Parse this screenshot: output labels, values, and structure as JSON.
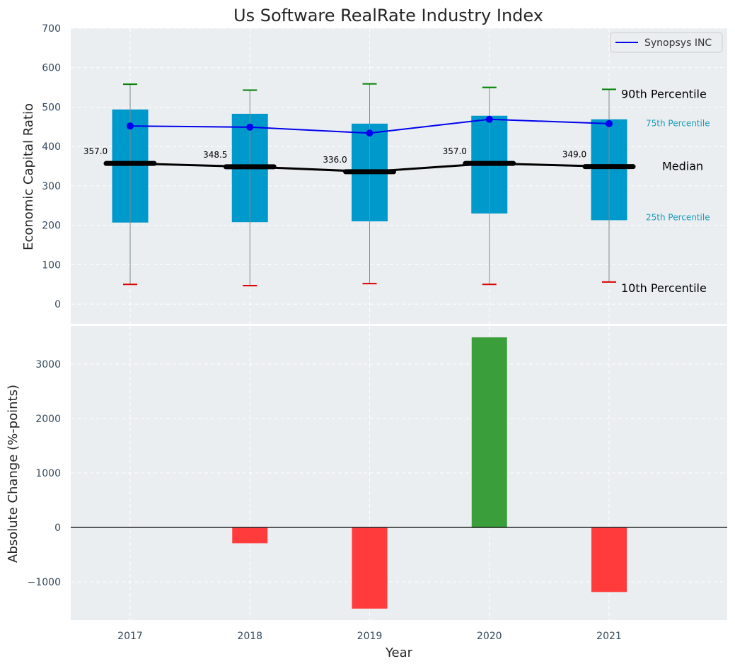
{
  "chart_data": [
    {
      "type": "box",
      "title": "Us Software RealRate Industry Index",
      "ylabel": "Economic Capital Ratio",
      "ylim": [
        -50,
        700
      ],
      "yticks": [
        0,
        100,
        200,
        300,
        400,
        500,
        600,
        700
      ],
      "categories": [
        "2017",
        "2018",
        "2019",
        "2020",
        "2021"
      ],
      "p10": [
        50,
        47,
        52,
        50,
        56
      ],
      "p25": [
        207,
        208,
        210,
        230,
        213
      ],
      "median": [
        357.0,
        348.5,
        336.0,
        357.0,
        349.0
      ],
      "median_labels": [
        "357.0",
        "348.5",
        "336.0",
        "357.0",
        "349.0"
      ],
      "p75": [
        494,
        483,
        458,
        478,
        469
      ],
      "p90": [
        558,
        543,
        559,
        550,
        545
      ],
      "series": [
        {
          "name": "Synopsys INC",
          "values": [
            452,
            449,
            434,
            469,
            458
          ]
        }
      ],
      "annotations": {
        "p90": "90th Percentile",
        "p75": "75th Percentile",
        "median": "Median",
        "p25": "25th Percentile",
        "p10": "10th Percentile"
      },
      "colors": {
        "box": "#0099cc",
        "series": "#0000ee",
        "median": "#000000",
        "p90_cap": "#008000",
        "p10_cap": "#dd0000",
        "pct_text": "#1a9bbb",
        "background": "#eaeef0"
      },
      "legend": "top-right",
      "grid": true
    },
    {
      "type": "bar",
      "ylabel": "Absolute Change (%-points)",
      "xlabel": "Year",
      "ylim": [
        -1700,
        3700
      ],
      "yticks": [
        -1000,
        0,
        1000,
        2000,
        3000
      ],
      "ytick_labels": [
        "−1000",
        "0",
        "1000",
        "2000",
        "3000"
      ],
      "categories": [
        "2017",
        "2018",
        "2019",
        "2020",
        "2021"
      ],
      "values": [
        0,
        -290,
        -1490,
        3490,
        -1185
      ],
      "colors": {
        "positive": "#3a9e3a",
        "negative": "#ff3b3b"
      },
      "grid": true
    }
  ]
}
